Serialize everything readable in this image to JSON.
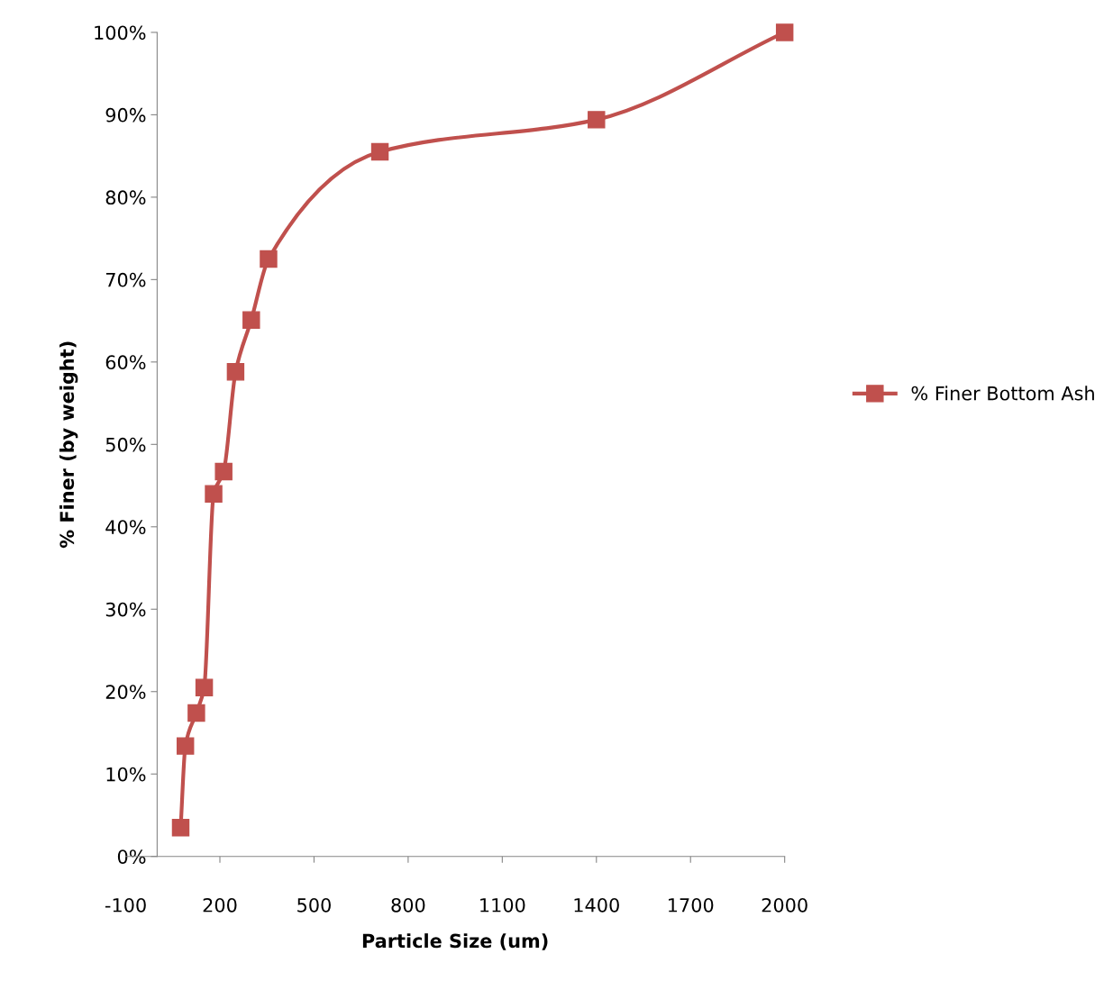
{
  "chart_data": {
    "type": "line",
    "xlabel": "Particle Size (um)",
    "ylabel": "% Finer (by weight)",
    "x": [
      75,
      90,
      125,
      150,
      180,
      212,
      250,
      300,
      355,
      710,
      1400,
      2000
    ],
    "series": [
      {
        "name": "% Finer Bottom Ash",
        "color": "#c0504d",
        "values": [
          3.5,
          13.4,
          17.4,
          20.5,
          44.0,
          46.7,
          58.8,
          65.1,
          72.5,
          85.5,
          89.4,
          100
        ]
      }
    ],
    "xlim": [
      -100,
      2000
    ],
    "xticks": [
      -100,
      200,
      500,
      800,
      1100,
      1400,
      1700,
      2000
    ],
    "ylim": [
      0,
      100
    ],
    "yticks": [
      {
        "value": 0,
        "label": "0%"
      },
      {
        "value": 10,
        "label": "10%"
      },
      {
        "value": 20,
        "label": "20%"
      },
      {
        "value": 30,
        "label": "30%"
      },
      {
        "value": 40,
        "label": "40%"
      },
      {
        "value": 50,
        "label": "50%"
      },
      {
        "value": 60,
        "label": "60%"
      },
      {
        "value": 70,
        "label": "70%"
      },
      {
        "value": 80,
        "label": "80%"
      },
      {
        "value": 90,
        "label": "90%"
      },
      {
        "value": 100,
        "label": "100%"
      }
    ],
    "marker": "square",
    "line_style": "solid",
    "grid": false,
    "legend": "right"
  }
}
